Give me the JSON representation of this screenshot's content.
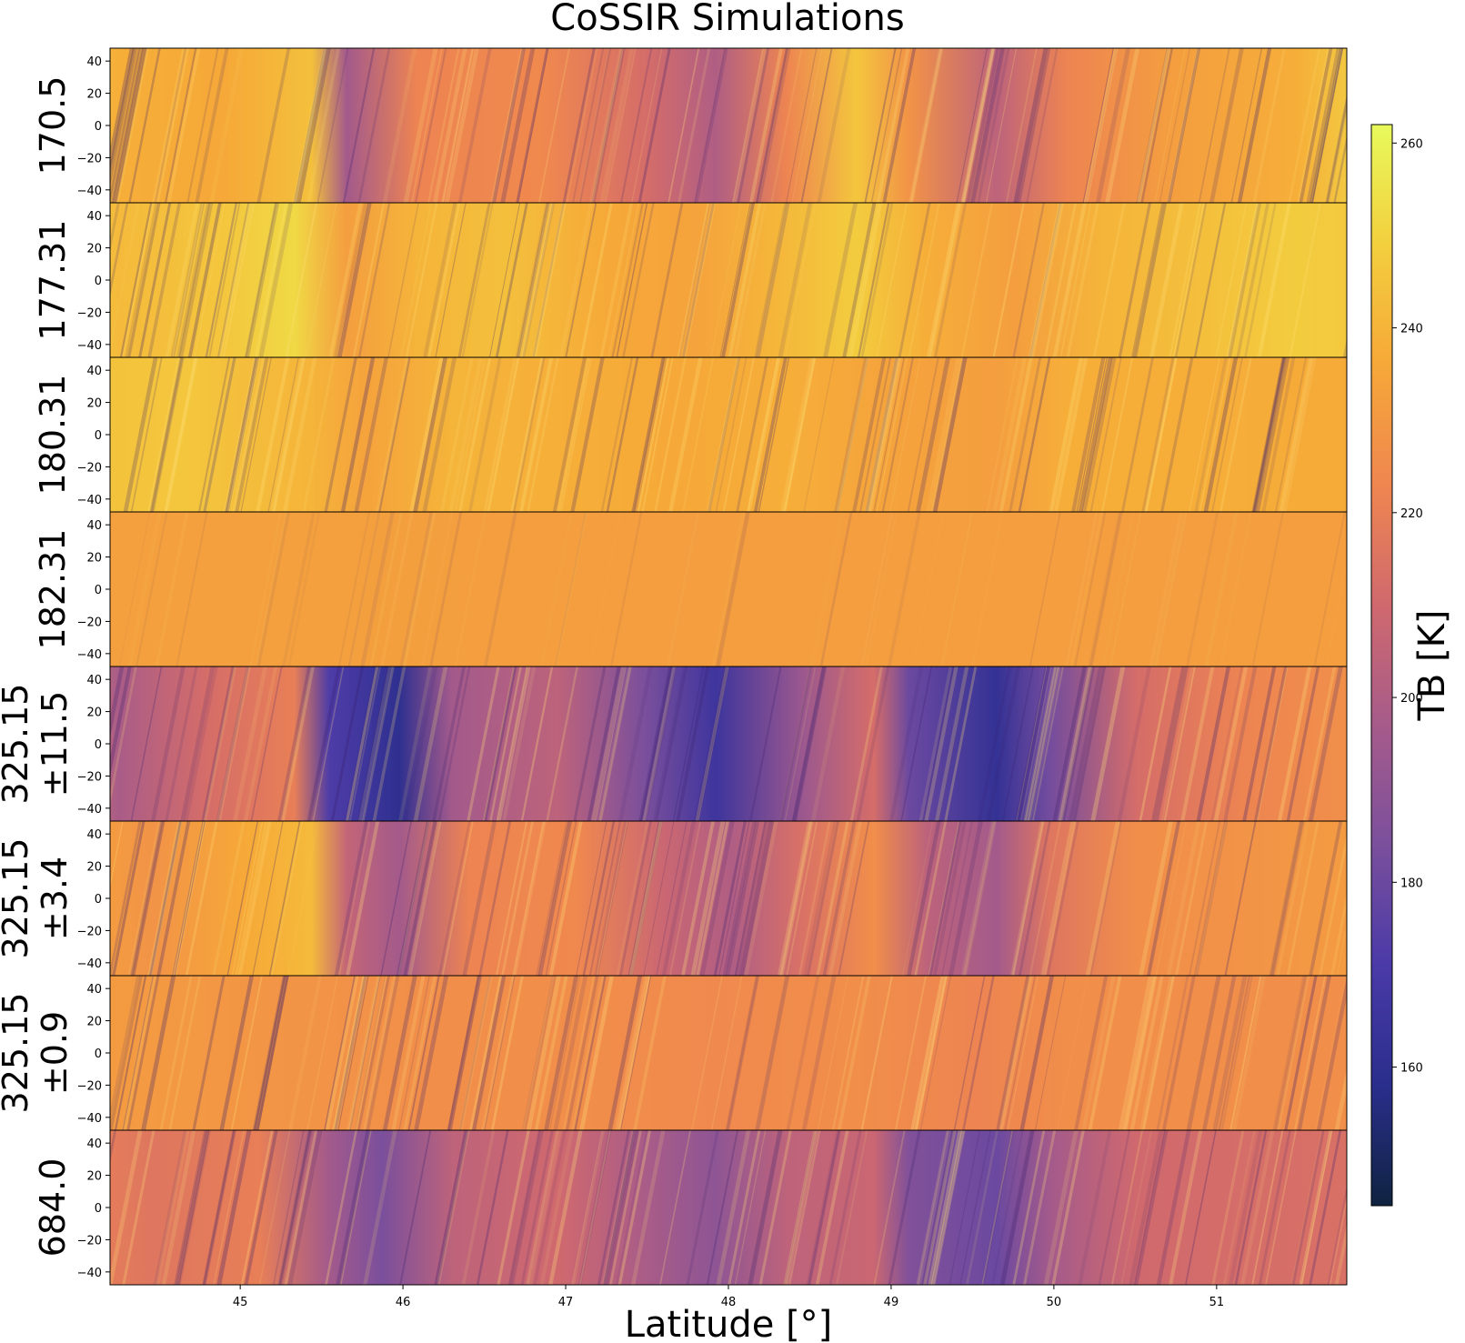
{
  "chart_data": {
    "type": "heatmap",
    "title": "CoSSIR Simulations",
    "xlabel": "Latitude [°]",
    "xlim": [
      44.2,
      51.8
    ],
    "x_ticks": [
      "45",
      "46",
      "47",
      "48",
      "49",
      "50",
      "51"
    ],
    "x_tick_values": [
      45,
      46,
      47,
      48,
      49,
      50,
      51
    ],
    "y_ticks": [
      "40",
      "20",
      "0",
      "−20",
      "−40"
    ],
    "y_tick_values": [
      40,
      20,
      0,
      -20,
      -40
    ],
    "ylim": [
      -48,
      48
    ],
    "colorbar": {
      "label": "TB [K]",
      "range": [
        145,
        262
      ],
      "ticks": [
        "260",
        "240",
        "220",
        "200",
        "180",
        "160"
      ],
      "tick_values": [
        260,
        240,
        220,
        200,
        180,
        160
      ],
      "colormap": "thermal",
      "stops": [
        "#0f2340",
        "#2a2e8c",
        "#4a3aa8",
        "#7a4f9c",
        "#a65b8a",
        "#d0696e",
        "#ef8650",
        "#f6a838",
        "#f3cf3e",
        "#e8fa5b"
      ]
    },
    "panels": [
      {
        "label_lines": [
          "170.5"
        ],
        "base_tb": 225,
        "profile_tb": [
          [
            44.2,
            252
          ],
          [
            44.6,
            238
          ],
          [
            45.2,
            236
          ],
          [
            45.7,
            244
          ],
          [
            45.9,
            196
          ],
          [
            46.3,
            222
          ],
          [
            47.0,
            224
          ],
          [
            47.6,
            212
          ],
          [
            48.0,
            200
          ],
          [
            48.4,
            222
          ],
          [
            48.8,
            246
          ],
          [
            49.1,
            228
          ],
          [
            49.6,
            204
          ],
          [
            50.0,
            222
          ],
          [
            50.6,
            232
          ],
          [
            51.3,
            238
          ],
          [
            51.8,
            252
          ]
        ]
      },
      {
        "label_lines": [
          "177.31"
        ],
        "base_tb": 240,
        "profile_tb": [
          [
            44.2,
            252
          ],
          [
            44.6,
            242
          ],
          [
            45.2,
            246
          ],
          [
            45.6,
            252
          ],
          [
            45.9,
            232
          ],
          [
            46.3,
            240
          ],
          [
            46.8,
            244
          ],
          [
            47.4,
            236
          ],
          [
            47.9,
            234
          ],
          [
            48.3,
            240
          ],
          [
            48.8,
            248
          ],
          [
            49.2,
            238
          ],
          [
            49.7,
            232
          ],
          [
            50.2,
            240
          ],
          [
            50.8,
            244
          ],
          [
            51.3,
            248
          ],
          [
            51.8,
            246
          ]
        ]
      },
      {
        "label_lines": [
          "180.31"
        ],
        "base_tb": 236,
        "profile_tb": [
          [
            44.2,
            244
          ],
          [
            45.0,
            246
          ],
          [
            45.7,
            240
          ],
          [
            46.0,
            234
          ],
          [
            46.5,
            240
          ],
          [
            47.2,
            238
          ],
          [
            47.8,
            236
          ],
          [
            48.4,
            238
          ],
          [
            49.0,
            234
          ],
          [
            49.6,
            232
          ],
          [
            50.0,
            238
          ],
          [
            50.8,
            238
          ],
          [
            51.8,
            236
          ]
        ]
      },
      {
        "label_lines": [
          "182.31"
        ],
        "base_tb": 232,
        "profile_tb": [
          [
            44.2,
            233
          ],
          [
            45.5,
            233
          ],
          [
            47.0,
            232
          ],
          [
            48.5,
            232
          ],
          [
            50.0,
            232
          ],
          [
            51.8,
            232
          ]
        ]
      },
      {
        "label_lines": [
          "325.15",
          "±11.5"
        ],
        "base_tb": 205,
        "profile_tb": [
          [
            44.2,
            222
          ],
          [
            44.6,
            198
          ],
          [
            45.1,
            212
          ],
          [
            45.6,
            220
          ],
          [
            45.8,
            172
          ],
          [
            46.2,
            160
          ],
          [
            46.5,
            196
          ],
          [
            47.1,
            204
          ],
          [
            47.6,
            184
          ],
          [
            48.0,
            166
          ],
          [
            48.5,
            194
          ],
          [
            48.9,
            212
          ],
          [
            49.1,
            180
          ],
          [
            49.6,
            162
          ],
          [
            49.9,
            182
          ],
          [
            50.4,
            212
          ],
          [
            51.0,
            222
          ],
          [
            51.8,
            228
          ]
        ]
      },
      {
        "label_lines": [
          "325.15",
          "±3.4"
        ],
        "base_tb": 222,
        "profile_tb": [
          [
            44.2,
            236
          ],
          [
            44.8,
            228
          ],
          [
            45.3,
            236
          ],
          [
            45.7,
            242
          ],
          [
            45.9,
            206
          ],
          [
            46.2,
            196
          ],
          [
            46.6,
            222
          ],
          [
            47.2,
            224
          ],
          [
            47.7,
            208
          ],
          [
            48.1,
            200
          ],
          [
            48.5,
            214
          ],
          [
            48.9,
            226
          ],
          [
            49.2,
            204
          ],
          [
            49.6,
            196
          ],
          [
            49.9,
            216
          ],
          [
            50.4,
            226
          ],
          [
            51.0,
            228
          ],
          [
            51.8,
            232
          ]
        ]
      },
      {
        "label_lines": [
          "325.15",
          "±0.9"
        ],
        "base_tb": 228,
        "profile_tb": [
          [
            44.2,
            232
          ],
          [
            45.0,
            230
          ],
          [
            45.8,
            228
          ],
          [
            46.4,
            226
          ],
          [
            47.2,
            226
          ],
          [
            48.0,
            224
          ],
          [
            48.8,
            226
          ],
          [
            49.5,
            222
          ],
          [
            50.0,
            226
          ],
          [
            50.8,
            226
          ],
          [
            51.8,
            226
          ]
        ]
      },
      {
        "label_lines": [
          "684.0"
        ],
        "base_tb": 212,
        "profile_tb": [
          [
            44.2,
            222
          ],
          [
            44.8,
            216
          ],
          [
            45.4,
            220
          ],
          [
            45.8,
            196
          ],
          [
            46.1,
            184
          ],
          [
            46.5,
            204
          ],
          [
            47.1,
            210
          ],
          [
            47.6,
            198
          ],
          [
            48.0,
            190
          ],
          [
            48.4,
            204
          ],
          [
            48.9,
            208
          ],
          [
            49.1,
            186
          ],
          [
            49.6,
            180
          ],
          [
            49.9,
            196
          ],
          [
            50.4,
            210
          ],
          [
            51.0,
            212
          ],
          [
            51.8,
            214
          ]
        ]
      }
    ]
  }
}
